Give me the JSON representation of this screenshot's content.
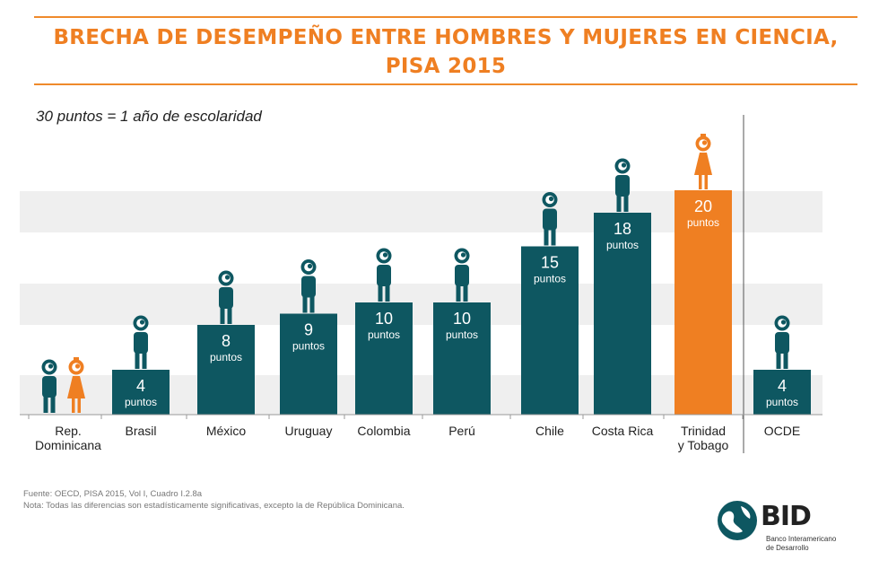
{
  "title": {
    "line1": "BRECHA DE DESEMPEÑO ENTRE HOMBRES Y MUJERES EN CIENCIA,",
    "line2": "PISA 2015"
  },
  "subtitle": "30 puntos = 1 año de escolaridad",
  "colors": {
    "boy": "#0e5761",
    "girl": "#ef7f22",
    "title": "#ef7f22",
    "band": "#efefef"
  },
  "chart_data": {
    "type": "bar",
    "title": "BRECHA DE DESEMPEÑO ENTRE HOMBRES Y MUJERES EN CIENCIA, PISA 2015",
    "ylim": [
      0,
      20
    ],
    "unit": "puntos",
    "categories": [
      {
        "label": [
          "Rep.",
          "Dominicana"
        ],
        "value": 0,
        "favors": "none",
        "icons": [
          "boy",
          "girl"
        ]
      },
      {
        "label": [
          "Brasil"
        ],
        "value": 4,
        "favors": "boy"
      },
      {
        "label": [
          "México"
        ],
        "value": 8,
        "favors": "boy"
      },
      {
        "label": [
          "Uruguay"
        ],
        "value": 9,
        "favors": "boy"
      },
      {
        "label": [
          "Colombia"
        ],
        "value": 10,
        "favors": "boy"
      },
      {
        "label": [
          "Perú"
        ],
        "value": 10,
        "favors": "boy"
      },
      {
        "label": [
          "Chile"
        ],
        "value": 15,
        "favors": "boy"
      },
      {
        "label": [
          "Costa Rica"
        ],
        "value": 18,
        "favors": "boy"
      },
      {
        "label": [
          "Trinidad",
          "y Tobago"
        ],
        "value": 20,
        "favors": "girl"
      },
      {
        "label": [
          "OCDE"
        ],
        "value": 4,
        "favors": "boy",
        "separated": true
      }
    ]
  },
  "footer": {
    "source": "Fuente: OECD, PISA 2015, Vol I, Cuadro I.2.8a",
    "note": "Nota: Todas las diferencias son estadísticamente significativas, excepto la de República Dominicana."
  },
  "logo": {
    "name": "BID",
    "line1": "Banco Interamericano",
    "line2": "de Desarrollo"
  }
}
